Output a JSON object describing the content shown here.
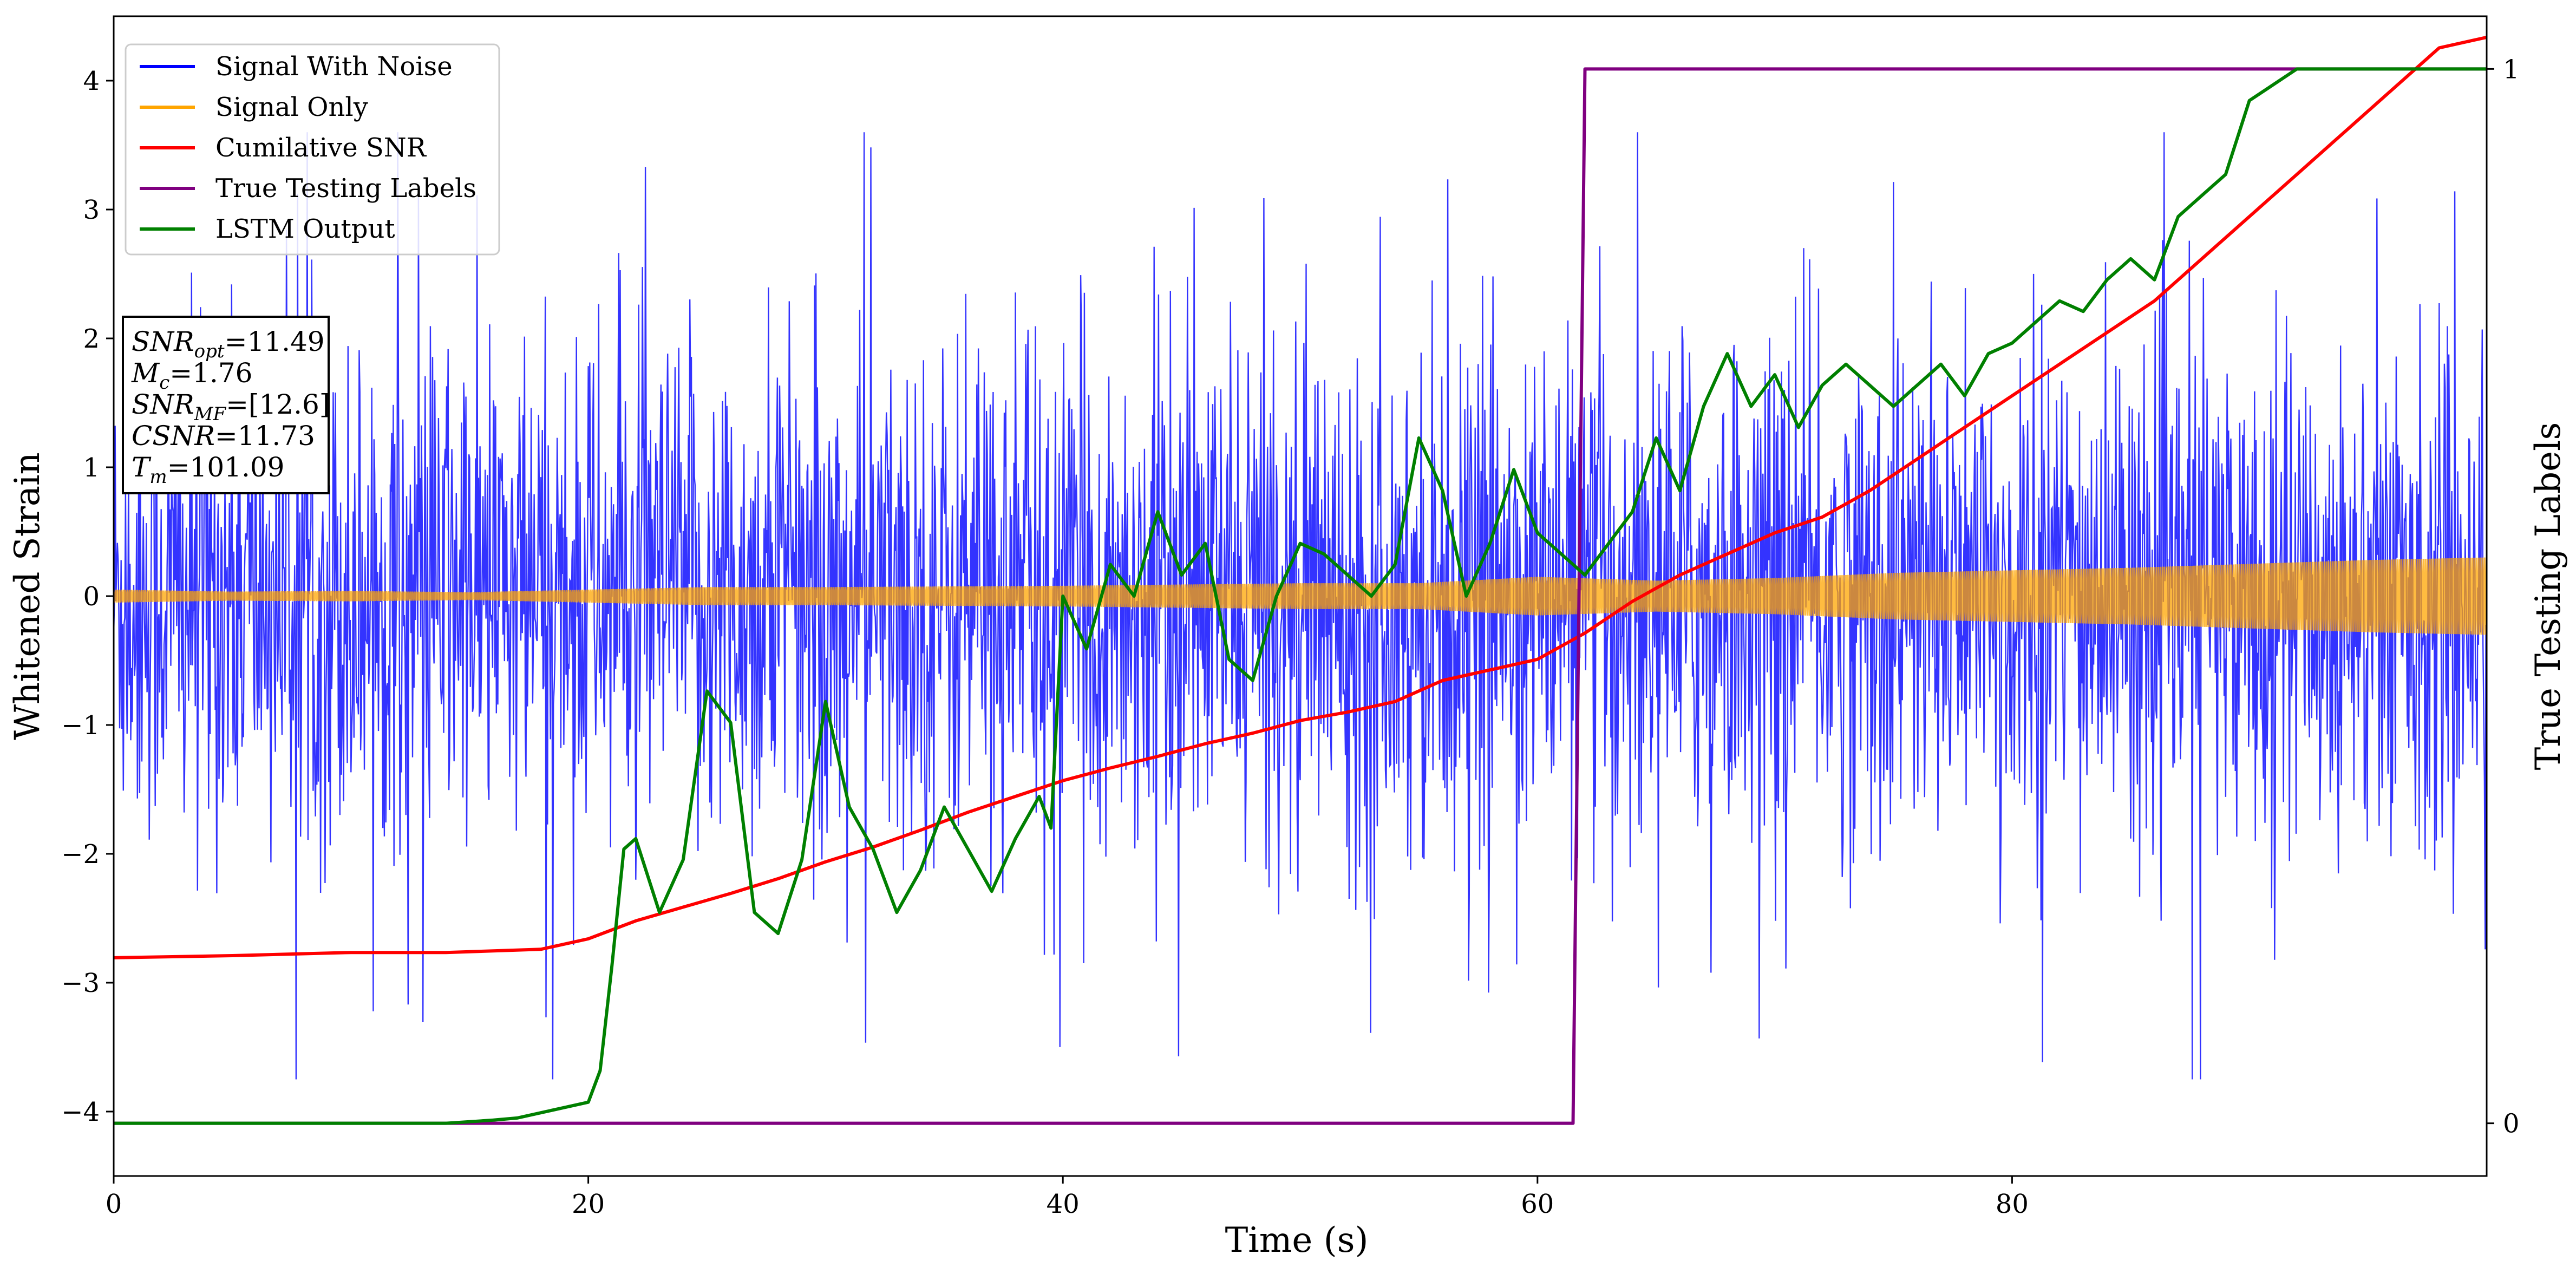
{
  "chart_data": {
    "type": "line",
    "xlabel": "Time (s)",
    "ylabel": "Whitened Strain",
    "y2label": "True Testing Labels",
    "xlim": [
      0,
      100
    ],
    "ylim": [
      -4.5,
      4.5
    ],
    "y2lim": [
      -0.05,
      1.05
    ],
    "xticks": [
      0,
      20,
      40,
      60,
      80
    ],
    "yticks": [
      -4,
      -3,
      -2,
      -1,
      0,
      1,
      2,
      3,
      4
    ],
    "y2ticks": [
      0,
      1
    ],
    "grid": false,
    "legend_position": "top-left",
    "legend": [
      {
        "label": "Signal With Noise",
        "color": "#0000ff"
      },
      {
        "label": "Signal Only",
        "color": "#ffa500"
      },
      {
        "label": "Cumilative SNR",
        "color": "#ff0000"
      },
      {
        "label": "True Testing Labels",
        "color": "#800080"
      },
      {
        "label": "LSTM Output",
        "color": "#008000"
      }
    ],
    "annotation": {
      "lines": [
        {
          "base": "SNR",
          "sub": "opt",
          "rest": "=11.49"
        },
        {
          "base": "M",
          "sub": "c",
          "rest": "=1.76"
        },
        {
          "base": "SNR",
          "sub": "MF",
          "rest": "=[12.6]"
        },
        {
          "base": "CSNR",
          "sub": "",
          "rest": "=11.73"
        },
        {
          "base": "T",
          "sub": "m",
          "rest": "=101.09"
        }
      ]
    },
    "series": [
      {
        "name": "Signal With Noise",
        "axis": "left",
        "color": "#0000ff",
        "description": "dense noisy strain, mostly within about ±1.9 with spikes to about ±3.5, extremes near -4.0 at t≈39.7 and t≈94.7"
      },
      {
        "name": "Signal Only",
        "axis": "left",
        "color": "#ffa500",
        "envelope": {
          "x": [
            0,
            5,
            10,
            15,
            20,
            25,
            30,
            35,
            40,
            45,
            50,
            55,
            60,
            65,
            70,
            75,
            80,
            85,
            90,
            95,
            100
          ],
          "amplitude": [
            0.05,
            0.035,
            0.04,
            0.03,
            0.05,
            0.07,
            0.07,
            0.075,
            0.08,
            0.09,
            0.1,
            0.1,
            0.15,
            0.12,
            0.14,
            0.18,
            0.2,
            0.22,
            0.25,
            0.28,
            0.3
          ]
        }
      },
      {
        "name": "Cumilative SNR",
        "axis": "right",
        "color": "#ff0000",
        "x": [
          0,
          5,
          10,
          14,
          18,
          20,
          22,
          24,
          26,
          28,
          30,
          32,
          34,
          36,
          38,
          40,
          42,
          44,
          46,
          48,
          50,
          52,
          54,
          56,
          58,
          60,
          62,
          64,
          66,
          68,
          70,
          72,
          74,
          76,
          78,
          80,
          82,
          84,
          86,
          88,
          90,
          92,
          94,
          96,
          98,
          100
        ],
        "values": [
          0.157,
          0.159,
          0.162,
          0.162,
          0.165,
          0.175,
          0.192,
          0.205,
          0.218,
          0.232,
          0.248,
          0.262,
          0.278,
          0.295,
          0.31,
          0.325,
          0.337,
          0.348,
          0.36,
          0.37,
          0.382,
          0.39,
          0.4,
          0.42,
          0.43,
          0.44,
          0.465,
          0.495,
          0.52,
          0.54,
          0.56,
          0.575,
          0.6,
          0.63,
          0.66,
          0.69,
          0.72,
          0.75,
          0.78,
          0.82,
          0.86,
          0.9,
          0.94,
          0.98,
          1.02,
          1.03
        ]
      },
      {
        "name": "True Testing Labels",
        "axis": "right",
        "color": "#800080",
        "x": [
          0,
          61.5,
          62.0,
          100
        ],
        "values": [
          0,
          0,
          1,
          1
        ]
      },
      {
        "name": "LSTM Output",
        "axis": "right",
        "color": "#008000",
        "x": [
          0,
          14,
          16,
          17,
          18,
          19,
          20,
          20.5,
          21,
          21.5,
          22,
          23,
          24,
          25,
          26,
          27,
          28,
          29,
          30,
          31,
          32,
          33,
          34,
          35,
          36,
          37,
          38,
          39,
          39.5,
          40,
          41,
          42,
          43,
          44,
          45,
          46,
          47,
          48,
          49,
          50,
          51,
          52,
          53,
          54,
          55,
          56,
          57,
          58,
          59,
          60,
          61,
          62,
          63,
          64,
          65,
          66,
          67,
          68,
          69,
          70,
          71,
          72,
          73,
          74,
          75,
          76,
          77,
          78,
          79,
          80,
          81,
          82,
          83,
          84,
          85,
          86,
          87,
          88,
          89,
          90,
          92,
          95,
          98,
          100
        ],
        "values": [
          0,
          0,
          0.003,
          0.005,
          0.01,
          0.015,
          0.02,
          0.05,
          0.15,
          0.26,
          0.27,
          0.2,
          0.25,
          0.41,
          0.38,
          0.2,
          0.18,
          0.25,
          0.4,
          0.3,
          0.26,
          0.2,
          0.24,
          0.3,
          0.26,
          0.22,
          0.27,
          0.31,
          0.28,
          0.5,
          0.45,
          0.53,
          0.5,
          0.58,
          0.52,
          0.55,
          0.44,
          0.42,
          0.5,
          0.55,
          0.54,
          0.52,
          0.5,
          0.53,
          0.65,
          0.6,
          0.5,
          0.55,
          0.62,
          0.56,
          0.54,
          0.52,
          0.55,
          0.58,
          0.65,
          0.6,
          0.68,
          0.73,
          0.68,
          0.71,
          0.66,
          0.7,
          0.72,
          0.7,
          0.68,
          0.7,
          0.72,
          0.69,
          0.73,
          0.74,
          0.76,
          0.78,
          0.77,
          0.8,
          0.82,
          0.8,
          0.86,
          0.88,
          0.9,
          0.97,
          1.0,
          1.0,
          1.0,
          1.0
        ]
      }
    ]
  }
}
